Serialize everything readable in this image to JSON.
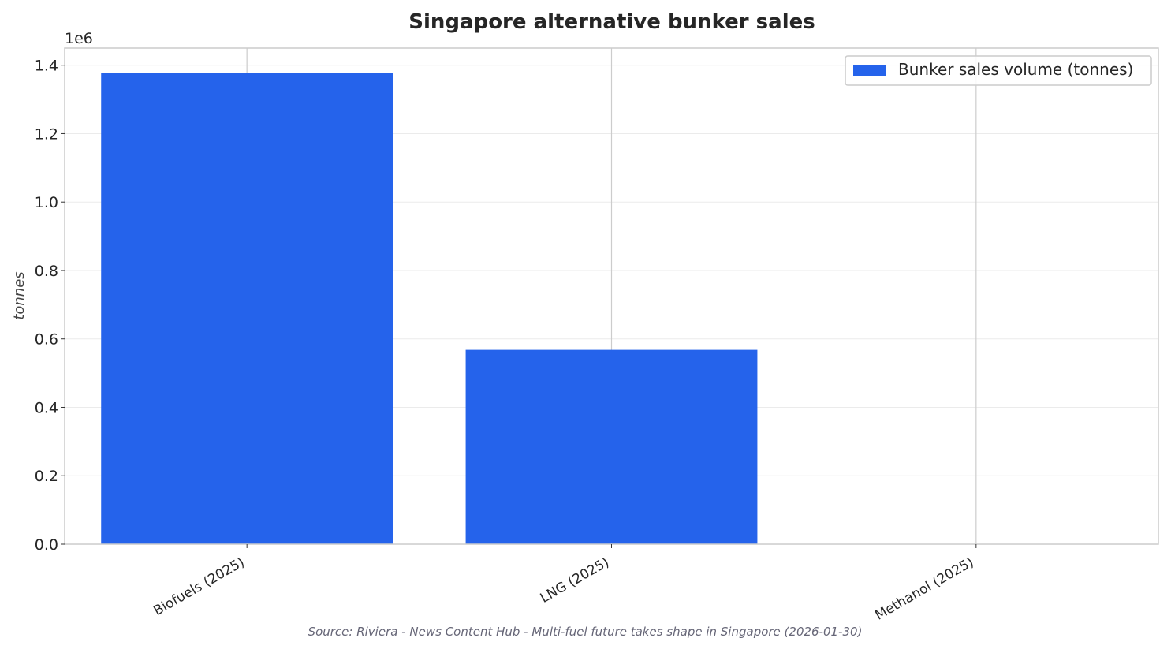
{
  "chart_data": {
    "type": "bar",
    "title": "Singapore alternative bunker sales",
    "ylabel": "tonnes",
    "xlabel": "",
    "y_offset_label": "1e6",
    "categories": [
      "Biofuels (2025)",
      "LNG (2025)",
      "Methanol (2025)"
    ],
    "series": [
      {
        "name": "Bunker sales volume (tonnes)",
        "values": [
          1377000,
          568000,
          0
        ],
        "color": "#2563eb"
      }
    ],
    "ylim": [
      0,
      1450000
    ],
    "yticks": [
      0,
      200000,
      400000,
      600000,
      800000,
      1000000,
      1200000,
      1400000
    ],
    "ytick_labels": [
      "0.0",
      "0.2",
      "0.4",
      "0.6",
      "0.8",
      "1.0",
      "1.2",
      "1.4"
    ],
    "grid": true,
    "legend_position": "top-right",
    "source_note": "Source: Riviera - News Content Hub - Multi-fuel future takes shape in Singapore (2026-01-30)"
  }
}
